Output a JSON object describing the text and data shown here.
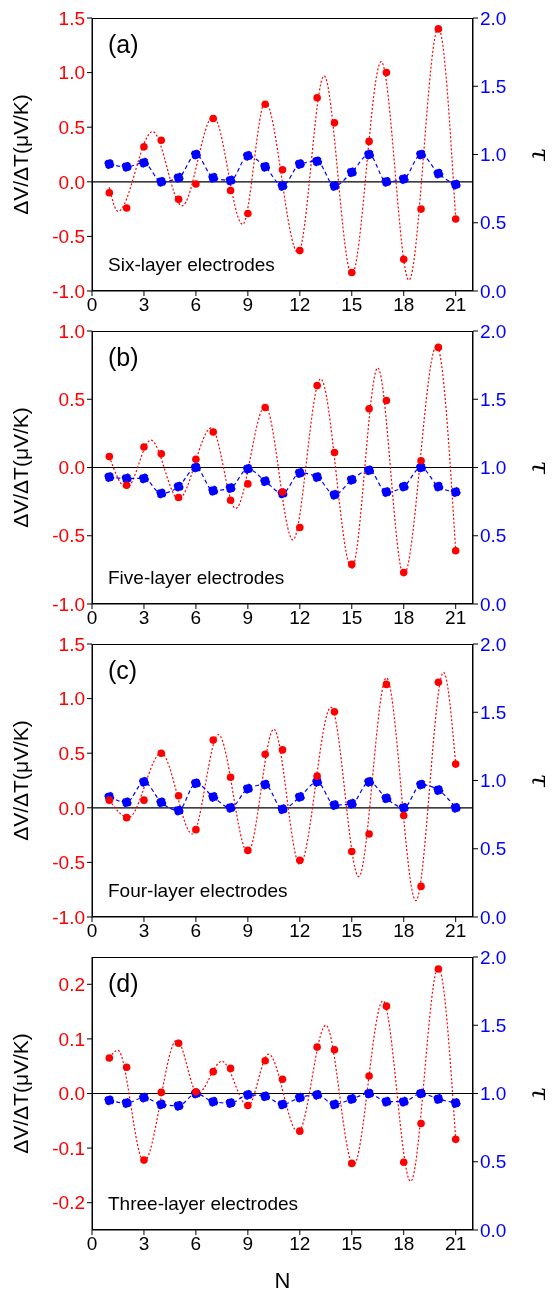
{
  "chart_data": [
    {
      "type": "scatter",
      "annotations": [
        "(a)",
        "Six-layer electrodes"
      ],
      "ylabel": "ΔV/ΔT(μV/K)",
      "y2label": "τ",
      "x": [
        1,
        2,
        3,
        4,
        5,
        6,
        7,
        8,
        9,
        10,
        11,
        12,
        13,
        14,
        15,
        16,
        17,
        18,
        19,
        20,
        21
      ],
      "xlim": [
        0,
        22
      ],
      "xticks": [
        0,
        3,
        6,
        9,
        12,
        15,
        18,
        21
      ],
      "ylim": [
        -1,
        1.5
      ],
      "yticks": [
        {
          "value": -1,
          "label": "-1.0"
        },
        {
          "value": -0.5,
          "label": "-0.5"
        },
        {
          "value": 0,
          "label": "0.0"
        },
        {
          "value": 0.5,
          "label": "0.5"
        },
        {
          "value": 1,
          "label": "1.0"
        },
        {
          "value": 1.5,
          "label": "1.5"
        }
      ],
      "y2lim": [
        0,
        2
      ],
      "y2ticks": [
        {
          "value": 0,
          "label": "0.0"
        },
        {
          "value": 0.5,
          "label": "0.5"
        },
        {
          "value": 1,
          "label": "1.0"
        },
        {
          "value": 1.5,
          "label": "1.5"
        },
        {
          "value": 2,
          "label": "2.0"
        }
      ],
      "ref_lines": [
        {
          "axis": "y",
          "value": 0,
          "color": "#000000"
        }
      ],
      "series": [
        {
          "marker": "circle",
          "color": "#ff0000",
          "values": [
            -0.1,
            -0.24,
            0.32,
            0.38,
            -0.16,
            -0.02,
            0.58,
            -0.08,
            -0.29,
            0.71,
            0.11,
            -0.63,
            0.77,
            0.54,
            -0.83,
            0.37,
            1.0,
            -0.71,
            -0.25,
            1.4,
            -0.34
          ]
        },
        {
          "type": "line",
          "marker": "none",
          "line_style": "dotted",
          "color": "#ff0000",
          "x": [
            1,
            1.5,
            3.5,
            5.2,
            7.0,
            8.7,
            10.0,
            11.9,
            13.4,
            15.0,
            16.7,
            18.3,
            20.0,
            21
          ],
          "values": [
            -0.05,
            -0.27,
            0.46,
            -0.22,
            0.6,
            -0.39,
            0.73,
            -0.65,
            0.97,
            -0.85,
            1.1,
            -0.9,
            1.41,
            -0.34
          ]
        },
        {
          "type": "line",
          "axis": "y2",
          "marker": "circle",
          "line_style": "dashed",
          "color": "#0000ff",
          "values": [
            0.93,
            0.91,
            0.94,
            0.8,
            0.83,
            1.0,
            0.83,
            0.81,
            0.99,
            0.91,
            0.77,
            0.93,
            0.95,
            0.77,
            0.87,
            1.0,
            0.8,
            0.82,
            1.0,
            0.86,
            0.78
          ]
        }
      ]
    },
    {
      "type": "scatter",
      "annotations": [
        "(b)",
        "Five-layer electrodes"
      ],
      "ylabel": "ΔV/ΔT(μV/K)",
      "y2label": "τ",
      "x": [
        1,
        2,
        3,
        4,
        5,
        6,
        7,
        8,
        9,
        10,
        11,
        12,
        13,
        14,
        15,
        16,
        17,
        18,
        19,
        20,
        21
      ],
      "xlim": [
        0,
        22
      ],
      "xticks": [
        0,
        3,
        6,
        9,
        12,
        15,
        18,
        21
      ],
      "ylim": [
        -1,
        1
      ],
      "yticks": [
        {
          "value": -1,
          "label": "-1.0"
        },
        {
          "value": -0.5,
          "label": "-0.5"
        },
        {
          "value": 0,
          "label": "0.0"
        },
        {
          "value": 0.5,
          "label": "0.5"
        },
        {
          "value": 1,
          "label": "1.0"
        }
      ],
      "y2lim": [
        0,
        2
      ],
      "y2ticks": [
        {
          "value": 0,
          "label": "0.0"
        },
        {
          "value": 0.5,
          "label": "0.5"
        },
        {
          "value": 1,
          "label": "1.0"
        },
        {
          "value": 1.5,
          "label": "1.5"
        },
        {
          "value": 2,
          "label": "2.0"
        }
      ],
      "ref_lines": [
        {
          "axis": "y",
          "value": 0,
          "color": "#000000"
        }
      ],
      "series": [
        {
          "marker": "circle",
          "color": "#ff0000",
          "values": [
            0.08,
            -0.13,
            0.15,
            0.1,
            -0.22,
            0.06,
            0.26,
            -0.24,
            -0.12,
            0.44,
            -0.18,
            -0.44,
            0.6,
            0.11,
            -0.71,
            0.43,
            0.49,
            -0.77,
            0.05,
            0.88,
            -0.61
          ]
        },
        {
          "type": "line",
          "marker": "none",
          "line_style": "dotted",
          "color": "#ff0000",
          "x": [
            1,
            2.0,
            3.4,
            5.0,
            6.9,
            8.3,
            10.0,
            11.6,
            13.2,
            15.0,
            16.5,
            18.0,
            19.9,
            21
          ],
          "values": [
            0.08,
            -0.15,
            0.2,
            -0.23,
            0.29,
            -0.3,
            0.45,
            -0.53,
            0.65,
            -0.74,
            0.73,
            -0.79,
            0.89,
            -0.61
          ]
        },
        {
          "type": "line",
          "axis": "y2",
          "marker": "circle",
          "line_style": "dashed",
          "color": "#0000ff",
          "values": [
            0.93,
            0.92,
            0.92,
            0.81,
            0.86,
            1.0,
            0.83,
            0.85,
            0.99,
            0.9,
            0.81,
            0.96,
            0.93,
            0.8,
            0.91,
            0.98,
            0.82,
            0.86,
            1.0,
            0.86,
            0.82
          ]
        }
      ]
    },
    {
      "type": "scatter",
      "annotations": [
        "(c)",
        "Four-layer electrodes"
      ],
      "ylabel": "ΔV/ΔT(μV/K)",
      "y2label": "τ",
      "x": [
        1,
        2,
        3,
        4,
        5,
        6,
        7,
        8,
        9,
        10,
        11,
        12,
        13,
        14,
        15,
        16,
        17,
        18,
        19,
        20,
        21
      ],
      "xlim": [
        0,
        22
      ],
      "xticks": [
        0,
        3,
        6,
        9,
        12,
        15,
        18,
        21
      ],
      "ylim": [
        -1,
        1.5
      ],
      "yticks": [
        {
          "value": -1,
          "label": "-1.0"
        },
        {
          "value": -0.5,
          "label": "-0.5"
        },
        {
          "value": 0,
          "label": "0.0"
        },
        {
          "value": 0.5,
          "label": "0.5"
        },
        {
          "value": 1,
          "label": "1.0"
        },
        {
          "value": 1.5,
          "label": "1.5"
        }
      ],
      "y2lim": [
        0,
        2
      ],
      "y2ticks": [
        {
          "value": 0,
          "label": "0.0"
        },
        {
          "value": 0.5,
          "label": "0.5"
        },
        {
          "value": 1,
          "label": "1.0"
        },
        {
          "value": 1.5,
          "label": "1.5"
        },
        {
          "value": 2,
          "label": "2.0"
        }
      ],
      "ref_lines": [
        {
          "axis": "y",
          "value": 0,
          "color": "#000000"
        }
      ],
      "series": [
        {
          "marker": "circle",
          "color": "#ff0000",
          "values": [
            0.07,
            -0.09,
            0.07,
            0.5,
            0.11,
            -0.2,
            0.62,
            0.28,
            -0.39,
            0.49,
            0.53,
            -0.48,
            0.29,
            0.88,
            -0.4,
            -0.24,
            1.13,
            -0.07,
            -0.72,
            1.15,
            0.4
          ]
        },
        {
          "type": "line",
          "marker": "none",
          "line_style": "dotted",
          "color": "#ff0000",
          "x": [
            1,
            2.1,
            4.0,
            5.8,
            7.3,
            9.0,
            10.5,
            12.0,
            13.8,
            15.4,
            17.0,
            18.7,
            20.3,
            21
          ],
          "values": [
            0.07,
            -0.09,
            0.5,
            -0.24,
            0.67,
            -0.41,
            0.72,
            -0.52,
            0.92,
            -0.63,
            1.19,
            -0.85,
            1.24,
            0.4
          ]
        },
        {
          "type": "line",
          "axis": "y2",
          "marker": "circle",
          "line_style": "dashed",
          "color": "#0000ff",
          "values": [
            0.88,
            0.84,
            0.99,
            0.84,
            0.78,
            0.98,
            0.88,
            0.8,
            0.94,
            0.97,
            0.79,
            0.88,
            0.99,
            0.82,
            0.83,
            0.99,
            0.87,
            0.8,
            0.97,
            0.93,
            0.8
          ]
        }
      ]
    },
    {
      "type": "scatter",
      "annotations": [
        "(d)",
        "Three-layer electrodes"
      ],
      "xlabel": "N",
      "ylabel": "ΔV/ΔT(μV/K)",
      "y2label": "τ",
      "x": [
        1,
        2,
        3,
        4,
        5,
        6,
        7,
        8,
        9,
        10,
        11,
        12,
        13,
        14,
        15,
        16,
        17,
        18,
        19,
        20,
        21
      ],
      "xlim": [
        0,
        22
      ],
      "xticks": [
        0,
        3,
        6,
        9,
        12,
        15,
        18,
        21
      ],
      "ylim": [
        -0.25,
        0.25
      ],
      "yticks": [
        {
          "value": -0.2,
          "label": "-0.2"
        },
        {
          "value": -0.1,
          "label": "-0.1"
        },
        {
          "value": 0,
          "label": "0.0"
        },
        {
          "value": 0.1,
          "label": "0.1"
        },
        {
          "value": 0.2,
          "label": "0.2"
        }
      ],
      "y2lim": [
        0,
        2
      ],
      "y2ticks": [
        {
          "value": 0,
          "label": "0.0"
        },
        {
          "value": 0.5,
          "label": "0.5"
        },
        {
          "value": 1,
          "label": "1.0"
        },
        {
          "value": 1.5,
          "label": "1.5"
        },
        {
          "value": 2,
          "label": "2.0"
        }
      ],
      "ref_lines": [
        {
          "axis": "y",
          "value": 0,
          "color": "#000000"
        }
      ],
      "series": [
        {
          "marker": "circle",
          "color": "#ff0000",
          "values": [
            0.065,
            0.048,
            -0.122,
            0.002,
            0.092,
            0.003,
            0.04,
            0.046,
            -0.022,
            0.06,
            0.026,
            -0.069,
            0.085,
            0.08,
            -0.128,
            0.032,
            0.16,
            -0.126,
            -0.055,
            0.228,
            -0.084
          ]
        },
        {
          "type": "line",
          "marker": "none",
          "line_style": "dotted",
          "color": "#ff0000",
          "x": [
            1,
            1.5,
            3.0,
            4.9,
            6.1,
            7.5,
            9.0,
            10.2,
            11.9,
            13.5,
            15.1,
            16.8,
            18.4,
            20.0,
            21
          ],
          "values": [
            0.065,
            0.079,
            -0.125,
            0.098,
            0.0,
            0.059,
            -0.023,
            0.072,
            -0.071,
            0.125,
            -0.131,
            0.17,
            -0.161,
            0.231,
            -0.084
          ]
        },
        {
          "type": "line",
          "axis": "y2",
          "marker": "circle",
          "line_style": "dashed",
          "color": "#0000ff",
          "values": [
            0.95,
            0.93,
            0.97,
            0.92,
            0.91,
            1.0,
            0.94,
            0.93,
            0.99,
            0.98,
            0.92,
            0.97,
            0.99,
            0.92,
            0.96,
            1.0,
            0.94,
            0.94,
            1.0,
            0.96,
            0.93
          ]
        }
      ]
    }
  ]
}
